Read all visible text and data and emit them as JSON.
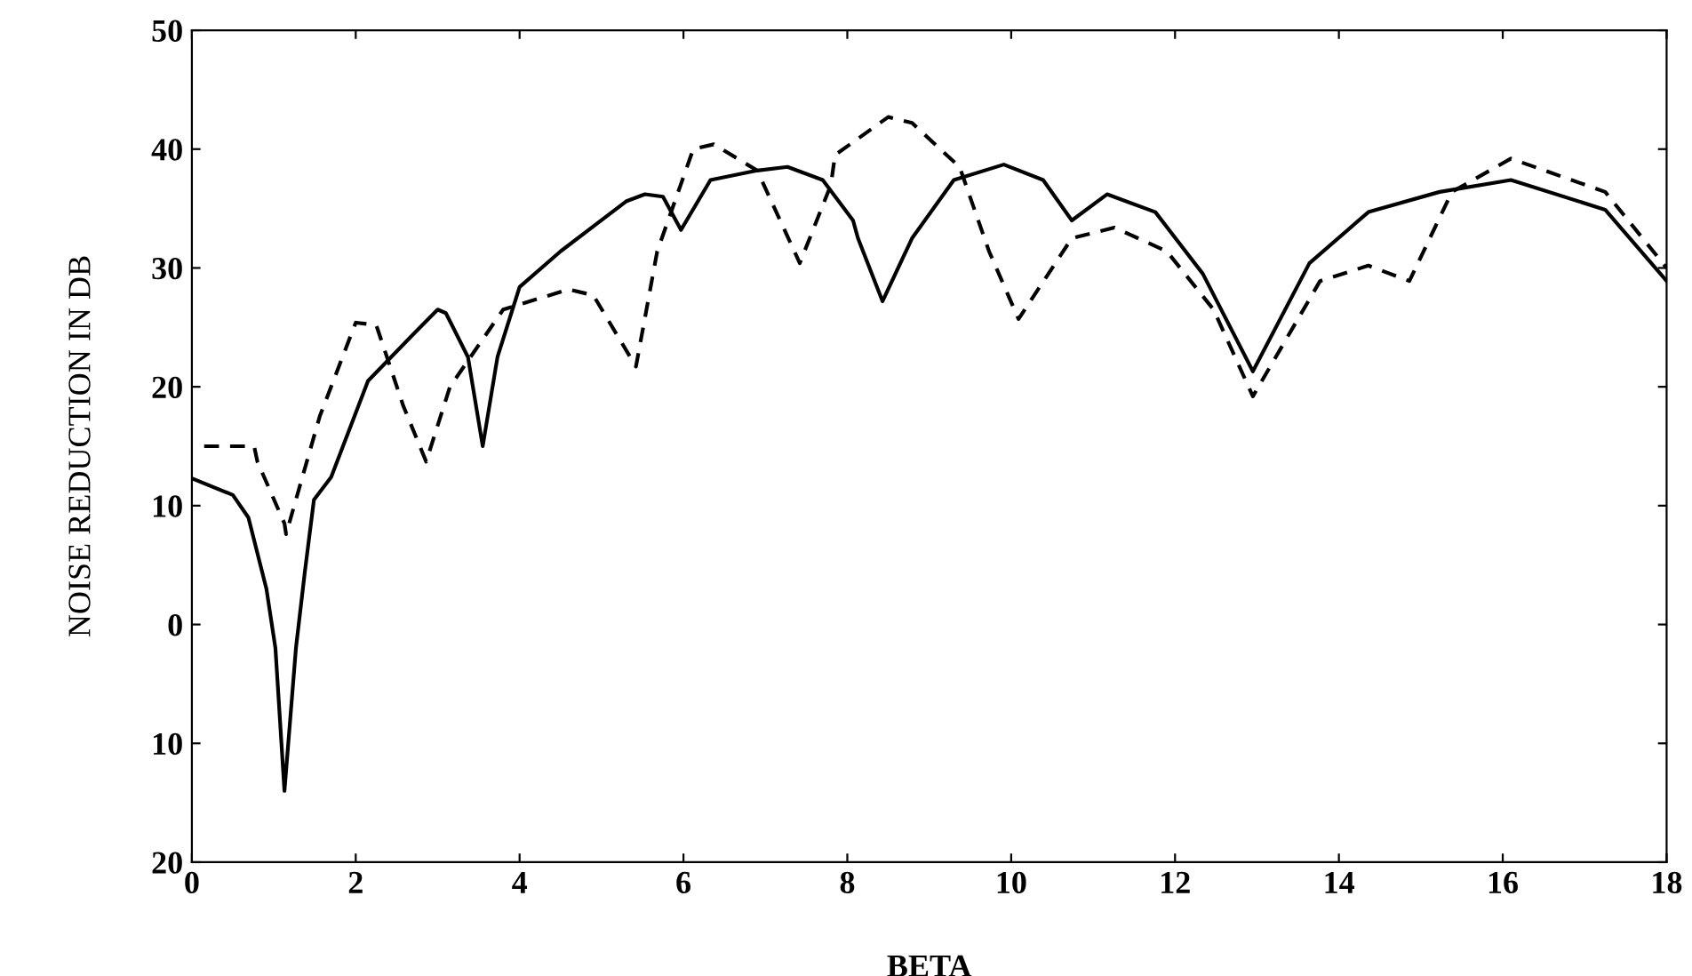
{
  "chart_data": {
    "type": "line",
    "xlabel": "BETA",
    "ylabel": "NOISE REDUCTION IN DB",
    "xlim": [
      0,
      18
    ],
    "ylim": [
      -20,
      50
    ],
    "xticks": [
      0,
      2,
      4,
      6,
      8,
      10,
      12,
      14,
      16,
      18
    ],
    "yticks": [
      {
        "value": -20,
        "label": "20"
      },
      {
        "value": -10,
        "label": "10"
      },
      0,
      10,
      20,
      30,
      40,
      50
    ],
    "grid": false,
    "legend": false,
    "marker": "none",
    "series": [
      {
        "color": "#000000",
        "line_style": "solid",
        "x": [
          0,
          0.5,
          0.69,
          0.91,
          1.02,
          1.13,
          1.27,
          1.38,
          1.49,
          1.7,
          2.15,
          2.7,
          3.0,
          3.1,
          3.37,
          3.55,
          3.73,
          4.0,
          4.5,
          5.3,
          5.53,
          5.75,
          5.97,
          6.33,
          6.9,
          7.27,
          7.7,
          8.07,
          8.13,
          8.43,
          8.79,
          9.3,
          9.91,
          10.39,
          10.74,
          11.17,
          11.76,
          12.34,
          12.95,
          13.64,
          14.36,
          15.23,
          16.1,
          17.25,
          18
        ],
        "values": [
          12.3,
          10.9,
          9,
          3,
          -2,
          -14,
          -2,
          4.5,
          10.5,
          12.4,
          20.5,
          24.4,
          26.5,
          26.2,
          22.5,
          15,
          22.5,
          28.4,
          31.4,
          35.6,
          36.2,
          36,
          33.2,
          37.4,
          38.2,
          38.5,
          37.4,
          34,
          32.5,
          27.2,
          32.5,
          37.4,
          38.7,
          37.4,
          34,
          36.2,
          34.7,
          29.5,
          21.3,
          30.4,
          34.7,
          36.4,
          37.4,
          34.9,
          28.9
        ]
      },
      {
        "color": "#000000",
        "line_style": "dashed",
        "x": [
          0.15,
          0.76,
          0.8,
          1.13,
          1.15,
          1.56,
          2.0,
          2.25,
          2.58,
          2.86,
          3.15,
          3.8,
          4.6,
          4.9,
          5.42,
          5.68,
          6.12,
          6.37,
          6.9,
          7.42,
          7.8,
          7.85,
          8.5,
          8.79,
          9.37,
          9.73,
          10.09,
          10.74,
          11.26,
          11.9,
          12.47,
          12.95,
          13.77,
          14.36,
          14.86,
          15.38,
          16.1,
          17.25,
          18
        ],
        "values": [
          15,
          15,
          13.7,
          8.5,
          7.6,
          17.5,
          25.4,
          25.2,
          18.4,
          13.7,
          20,
          26.5,
          28.2,
          27.7,
          21.7,
          31.4,
          40,
          40.4,
          38.2,
          30.4,
          37,
          39.5,
          42.7,
          42.2,
          38.5,
          31.4,
          25.7,
          32.5,
          33.4,
          31.4,
          26.5,
          19.2,
          28.9,
          30.2,
          28.9,
          36.4,
          39.2,
          36.4,
          30
        ]
      }
    ]
  }
}
